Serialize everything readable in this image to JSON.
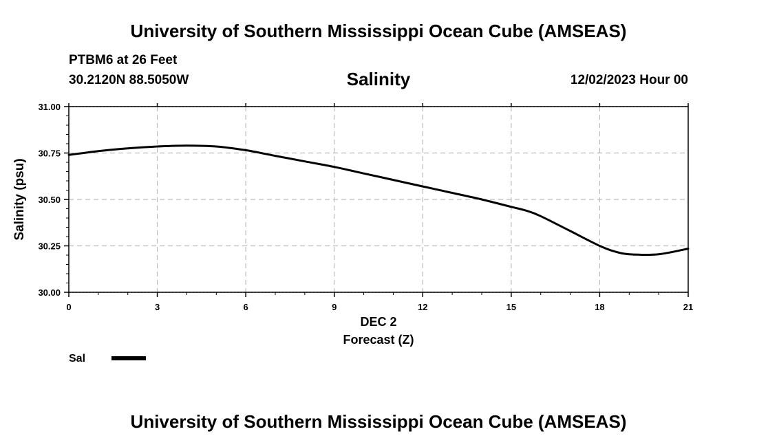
{
  "header": {
    "title": "University of Southern Mississippi Ocean Cube (AMSEAS)",
    "station": "PTBM6 at 26 Feet",
    "coords": "30.2120N  88.5050W",
    "variable": "Salinity",
    "date_hour": "12/02/2023 Hour 00"
  },
  "footer": {
    "title": "University of Southern Mississippi Ocean Cube (AMSEAS)"
  },
  "chart_data": {
    "type": "line",
    "title": "Salinity",
    "xlabel": "Forecast (Z)",
    "xlabel_date": "DEC 2",
    "ylabel": "Salinity (psu)",
    "xlim": [
      0,
      21
    ],
    "ylim": [
      30.0,
      31.0
    ],
    "xticks": [
      0,
      3,
      6,
      9,
      12,
      15,
      18,
      21
    ],
    "yticks": [
      30.0,
      30.25,
      30.5,
      30.75,
      31.0
    ],
    "ytick_labels": [
      "30.00",
      "30.25",
      "30.50",
      "30.75",
      "31.00"
    ],
    "grid": true,
    "legend": "bottom-left",
    "series": [
      {
        "name": "Sal",
        "color": "#000000",
        "x": [
          0,
          1,
          2,
          3,
          4,
          5,
          6,
          7,
          8,
          9,
          10,
          11,
          12,
          13,
          14,
          15,
          15.5,
          16,
          17,
          18,
          18.5,
          19,
          20,
          21
        ],
        "y": [
          30.74,
          30.76,
          30.775,
          30.785,
          30.79,
          30.785,
          30.765,
          30.735,
          30.705,
          30.675,
          30.64,
          30.605,
          30.57,
          30.535,
          30.5,
          30.46,
          30.44,
          30.41,
          30.33,
          30.25,
          30.22,
          30.205,
          30.205,
          30.235
        ]
      }
    ]
  }
}
